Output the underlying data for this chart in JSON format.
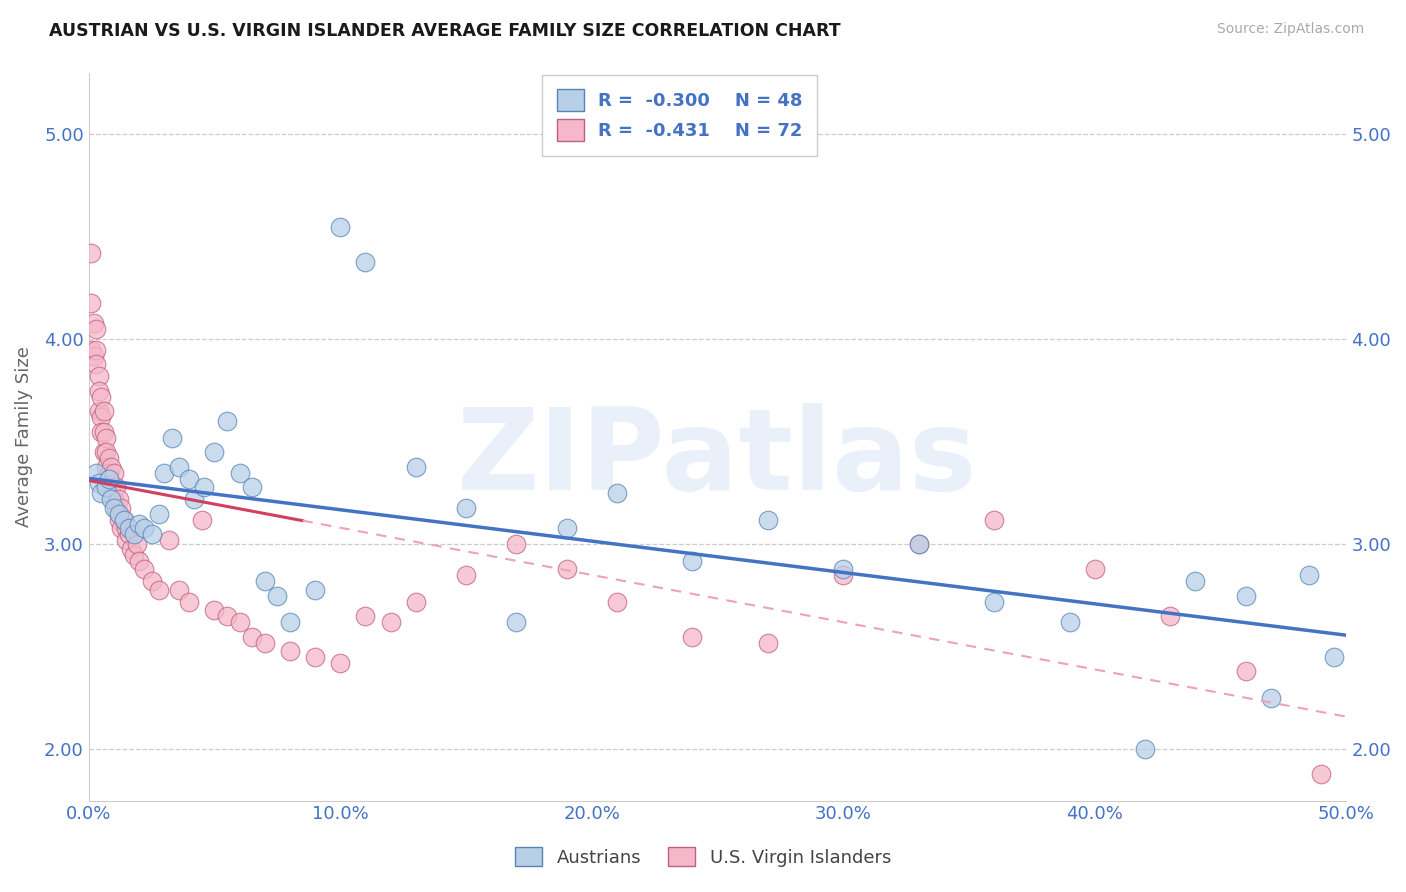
{
  "title": "AUSTRIAN VS U.S. VIRGIN ISLANDER AVERAGE FAMILY SIZE CORRELATION CHART",
  "source": "Source: ZipAtlas.com",
  "ylabel": "Average Family Size",
  "xlim": [
    0.0,
    0.5
  ],
  "ylim": [
    1.75,
    5.3
  ],
  "xticks": [
    0.0,
    0.1,
    0.2,
    0.3,
    0.4,
    0.5
  ],
  "xticklabels": [
    "0.0%",
    "10.0%",
    "20.0%",
    "30.0%",
    "40.0%",
    "50.0%"
  ],
  "yticks": [
    2.0,
    3.0,
    4.0,
    5.0
  ],
  "yticklabels": [
    "2.00",
    "3.00",
    "4.00",
    "5.00"
  ],
  "legend_r1": "R =  -0.300",
  "legend_n1": "N = 48",
  "legend_r2": "R =  -0.431",
  "legend_n2": "N = 72",
  "blue_fill": "#b8cfe8",
  "blue_edge": "#5585b5",
  "blue_line": "#4472c4",
  "pink_fill": "#f5b8ca",
  "pink_edge": "#c06080",
  "pink_line_solid": "#d04060",
  "pink_line_dash": "#f0a0b8",
  "legend_label1": "Austrians",
  "legend_label2": "U.S. Virgin Islanders",
  "watermark": "ZIPatlas",
  "austrians_x": [
    0.003,
    0.004,
    0.005,
    0.007,
    0.008,
    0.009,
    0.01,
    0.012,
    0.014,
    0.016,
    0.018,
    0.02,
    0.022,
    0.025,
    0.028,
    0.03,
    0.033,
    0.036,
    0.04,
    0.042,
    0.046,
    0.05,
    0.055,
    0.06,
    0.065,
    0.07,
    0.075,
    0.08,
    0.09,
    0.1,
    0.11,
    0.13,
    0.15,
    0.17,
    0.19,
    0.21,
    0.24,
    0.27,
    0.3,
    0.33,
    0.36,
    0.39,
    0.42,
    0.44,
    0.46,
    0.47,
    0.485,
    0.495
  ],
  "austrians_y": [
    3.35,
    3.3,
    3.25,
    3.28,
    3.32,
    3.22,
    3.18,
    3.15,
    3.12,
    3.08,
    3.05,
    3.1,
    3.08,
    3.05,
    3.15,
    3.35,
    3.52,
    3.38,
    3.32,
    3.22,
    3.28,
    3.45,
    3.6,
    3.35,
    3.28,
    2.82,
    2.75,
    2.62,
    2.78,
    4.55,
    4.38,
    3.38,
    3.18,
    2.62,
    3.08,
    3.25,
    2.92,
    3.12,
    2.88,
    3.0,
    2.72,
    2.62,
    2.0,
    2.82,
    2.75,
    2.25,
    2.85,
    2.45
  ],
  "vi_x": [
    0.001,
    0.001,
    0.001,
    0.002,
    0.002,
    0.003,
    0.003,
    0.003,
    0.004,
    0.004,
    0.004,
    0.005,
    0.005,
    0.005,
    0.006,
    0.006,
    0.006,
    0.007,
    0.007,
    0.007,
    0.008,
    0.008,
    0.008,
    0.009,
    0.009,
    0.01,
    0.01,
    0.011,
    0.011,
    0.012,
    0.012,
    0.013,
    0.013,
    0.014,
    0.015,
    0.015,
    0.016,
    0.017,
    0.018,
    0.019,
    0.02,
    0.022,
    0.025,
    0.028,
    0.032,
    0.036,
    0.04,
    0.045,
    0.05,
    0.055,
    0.06,
    0.065,
    0.07,
    0.08,
    0.09,
    0.1,
    0.11,
    0.12,
    0.13,
    0.15,
    0.17,
    0.19,
    0.21,
    0.24,
    0.27,
    0.3,
    0.33,
    0.36,
    0.4,
    0.43,
    0.46,
    0.49
  ],
  "vi_y": [
    4.42,
    4.18,
    3.95,
    4.08,
    3.92,
    4.05,
    3.95,
    3.88,
    3.82,
    3.75,
    3.65,
    3.72,
    3.62,
    3.55,
    3.65,
    3.55,
    3.45,
    3.52,
    3.45,
    3.38,
    3.42,
    3.35,
    3.28,
    3.38,
    3.28,
    3.35,
    3.22,
    3.28,
    3.18,
    3.22,
    3.12,
    3.18,
    3.08,
    3.12,
    3.08,
    3.02,
    3.05,
    2.98,
    2.95,
    3.0,
    2.92,
    2.88,
    2.82,
    2.78,
    3.02,
    2.78,
    2.72,
    3.12,
    2.68,
    2.65,
    2.62,
    2.55,
    2.52,
    2.48,
    2.45,
    2.42,
    2.65,
    2.62,
    2.72,
    2.85,
    3.0,
    2.88,
    2.72,
    2.55,
    2.52,
    2.85,
    3.0,
    3.12,
    2.88,
    2.65,
    2.38,
    1.88
  ]
}
